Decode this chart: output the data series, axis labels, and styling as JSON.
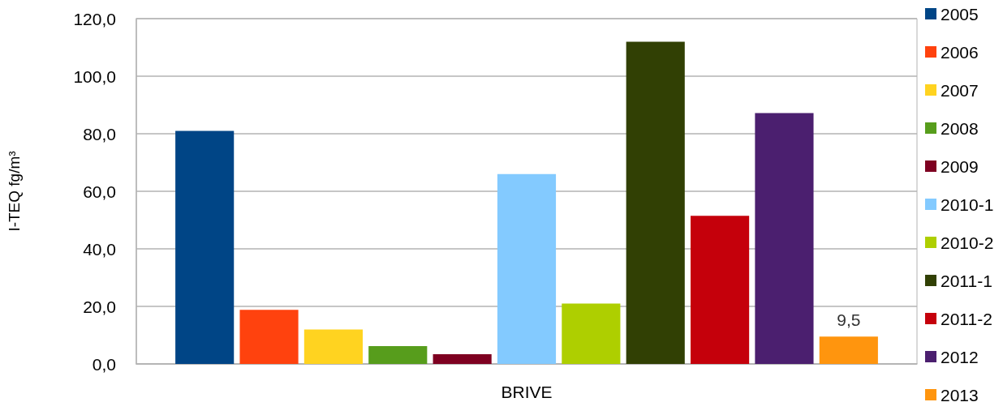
{
  "chart_data": {
    "type": "bar",
    "categories": [
      "BRIVE"
    ],
    "ylabel": "I-TEQ fg/m³",
    "ylim": [
      0,
      120
    ],
    "yticks": [
      {
        "value": 0,
        "label": "0,0"
      },
      {
        "value": 20,
        "label": "20,0"
      },
      {
        "value": 40,
        "label": "40,0"
      },
      {
        "value": 60,
        "label": "60,0"
      },
      {
        "value": 80,
        "label": "80,0"
      },
      {
        "value": 100,
        "label": "100,0"
      },
      {
        "value": 120,
        "label": "120,0"
      }
    ],
    "grid": "y",
    "legend": "right",
    "series": [
      {
        "name": "2005",
        "color": "#004586",
        "values": [
          81
        ]
      },
      {
        "name": "2006",
        "color": "#ff420e",
        "values": [
          18.8
        ]
      },
      {
        "name": "2007",
        "color": "#ffd320",
        "values": [
          12
        ]
      },
      {
        "name": "2008",
        "color": "#579d1c",
        "values": [
          6.2
        ]
      },
      {
        "name": "2009",
        "color": "#7e0021",
        "values": [
          3.4
        ]
      },
      {
        "name": "2010-1",
        "color": "#83caff",
        "values": [
          66
        ]
      },
      {
        "name": "2010-2",
        "color": "#aecf00",
        "values": [
          21
        ]
      },
      {
        "name": "2011-1",
        "color": "#314004",
        "values": [
          112
        ]
      },
      {
        "name": "2011-2",
        "color": "#c5000b",
        "values": [
          51.5
        ]
      },
      {
        "name": "2012",
        "color": "#4b1f6f",
        "values": [
          87.2
        ]
      },
      {
        "name": "2013",
        "color": "#ff950e",
        "values": [
          9.5
        ],
        "value_labels": [
          "9,5"
        ]
      }
    ]
  }
}
